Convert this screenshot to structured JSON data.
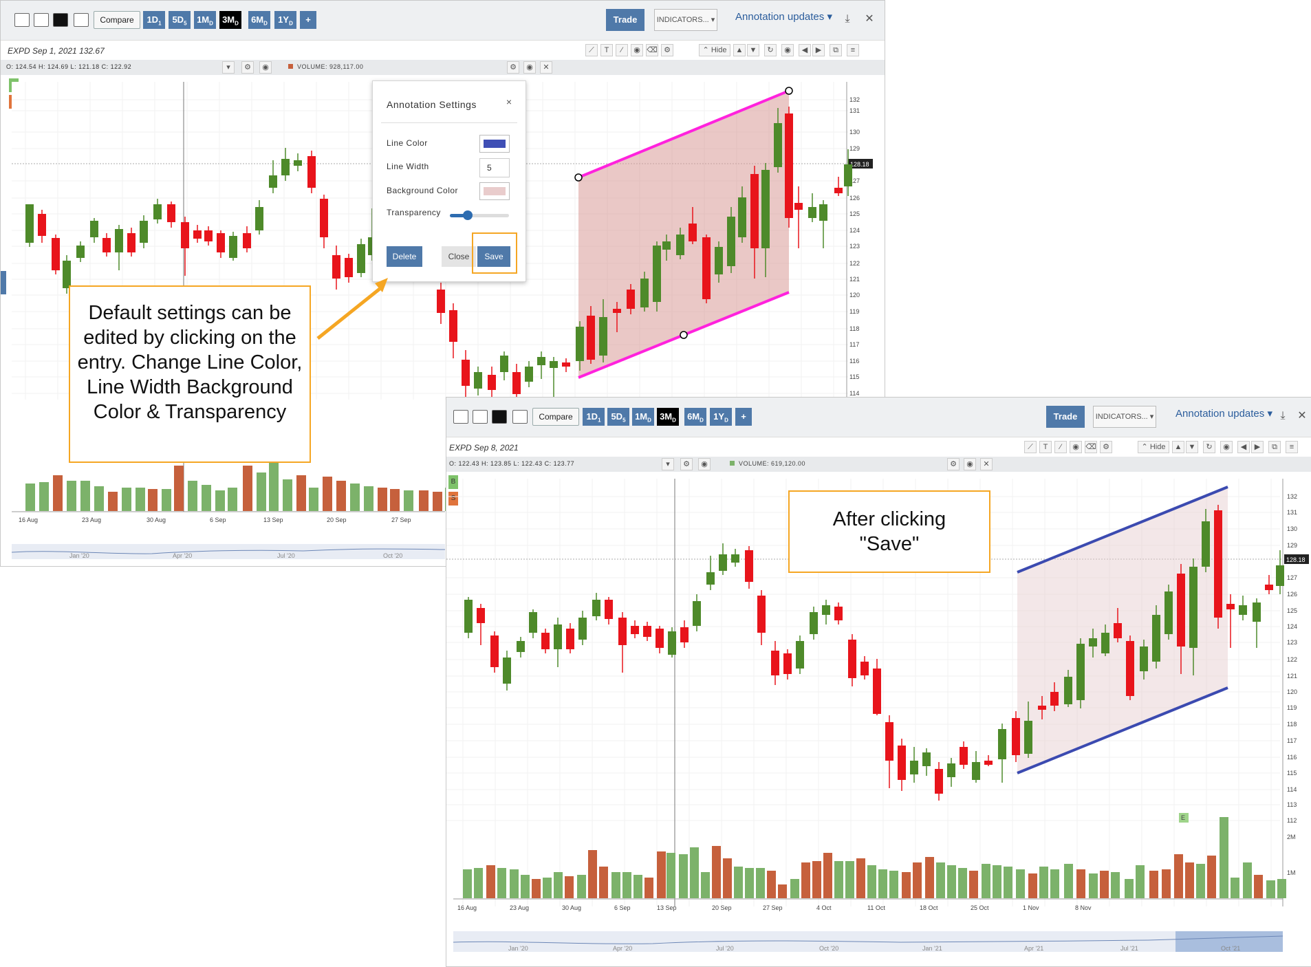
{
  "panel1": {
    "toolbar": {
      "compare_label": "Compare",
      "ranges": [
        {
          "label": "1D",
          "sub": "1"
        },
        {
          "label": "5D",
          "sub": "5"
        },
        {
          "label": "1M",
          "sub": "D"
        },
        {
          "label": "3M",
          "sub": "D"
        },
        {
          "label": "6M",
          "sub": "D"
        },
        {
          "label": "1Y",
          "sub": "D"
        }
      ],
      "add_label": "+",
      "trade_label": "Trade",
      "indicators_label": "INDICATORS...",
      "annotation_label": "Annotation updates"
    },
    "symbol": "EXPD  Sep 1, 2021 132.67",
    "ohlc": "O: 124.54 H: 124.69 L: 121.18 C: 122.92",
    "volume": "VOLUME: 928,117.00",
    "hide_label": "Hide",
    "buy_label": "B",
    "sell_label": "S",
    "last_price": "128.18",
    "y_ticks": [
      "132",
      "131",
      "130",
      "129",
      "127",
      "126",
      "125",
      "124",
      "123",
      "122",
      "121",
      "120",
      "119",
      "118",
      "117",
      "116",
      "115",
      "114"
    ],
    "x_ticks": [
      "16 Aug",
      "23 Aug",
      "30 Aug",
      "6 Sep",
      "13 Sep",
      "20 Sep",
      "27 Sep"
    ],
    "nav_ticks": [
      "Jan '20",
      "Apr '20",
      "Jul '20",
      "Oct '20"
    ]
  },
  "dialog": {
    "title": "Annotation Settings",
    "close": "×",
    "line_color_label": "Line Color",
    "line_color": "#3f4fb5",
    "line_width_label": "Line Width",
    "line_width": "5",
    "background_color_label": "Background Color",
    "background_color": "#e9cccc",
    "transparency_label": "Transparency",
    "transparency": 0.3,
    "delete_label": "Delete",
    "close_label": "Close",
    "save_label": "Save"
  },
  "callout1": {
    "text": "Default settings can be edited by clicking on the entry. Change Line Color, Line Width Background Color & Transparency"
  },
  "panel2": {
    "toolbar": {
      "compare_label": "Compare",
      "ranges": [
        {
          "label": "1D",
          "sub": "1"
        },
        {
          "label": "5D",
          "sub": "5"
        },
        {
          "label": "1M",
          "sub": "D"
        },
        {
          "label": "3M",
          "sub": "D"
        },
        {
          "label": "6M",
          "sub": "D"
        },
        {
          "label": "1Y",
          "sub": "D"
        }
      ],
      "add_label": "+",
      "trade_label": "Trade",
      "indicators_label": "INDICATORS...",
      "annotation_label": "Annotation updates"
    },
    "symbol": "EXPD  Sep 8, 2021",
    "ohlc": "O: 122.43 H: 123.85 L: 122.43 C: 123.77",
    "volume": "VOLUME: 619,120.00",
    "hide_label": "Hide",
    "buy_label": "B",
    "sell_label": "S",
    "last_price": "128.18",
    "earnings_label": "E",
    "y_ticks": [
      "132",
      "131",
      "130",
      "129",
      "127",
      "126",
      "125",
      "124",
      "123",
      "122",
      "121",
      "120",
      "119",
      "118",
      "117",
      "116",
      "115",
      "114",
      "113",
      "112"
    ],
    "vol_ticks": [
      "2M",
      "1M"
    ],
    "x_ticks": [
      "16 Aug",
      "23 Aug",
      "30 Aug",
      "6 Sep",
      "13 Sep",
      "20 Sep",
      "27 Sep",
      "4 Oct",
      "11 Oct",
      "18 Oct",
      "25 Oct",
      "1 Nov",
      "8 Nov"
    ],
    "nav_ticks": [
      "Jan '20",
      "Apr '20",
      "Jul '20",
      "Oct '20",
      "Jan '21",
      "Apr '21",
      "Jul '21",
      "Oct '21"
    ]
  },
  "callout2": {
    "line1": "After clicking",
    "line2": "\"Save\""
  },
  "colors": {
    "up": "#4e8a2a",
    "down": "#e8141b",
    "channel_pink": "#ff22dd",
    "channel_blue": "#3b4ab0",
    "accent": "#4f79a9",
    "callout_border": "#f5a623"
  }
}
